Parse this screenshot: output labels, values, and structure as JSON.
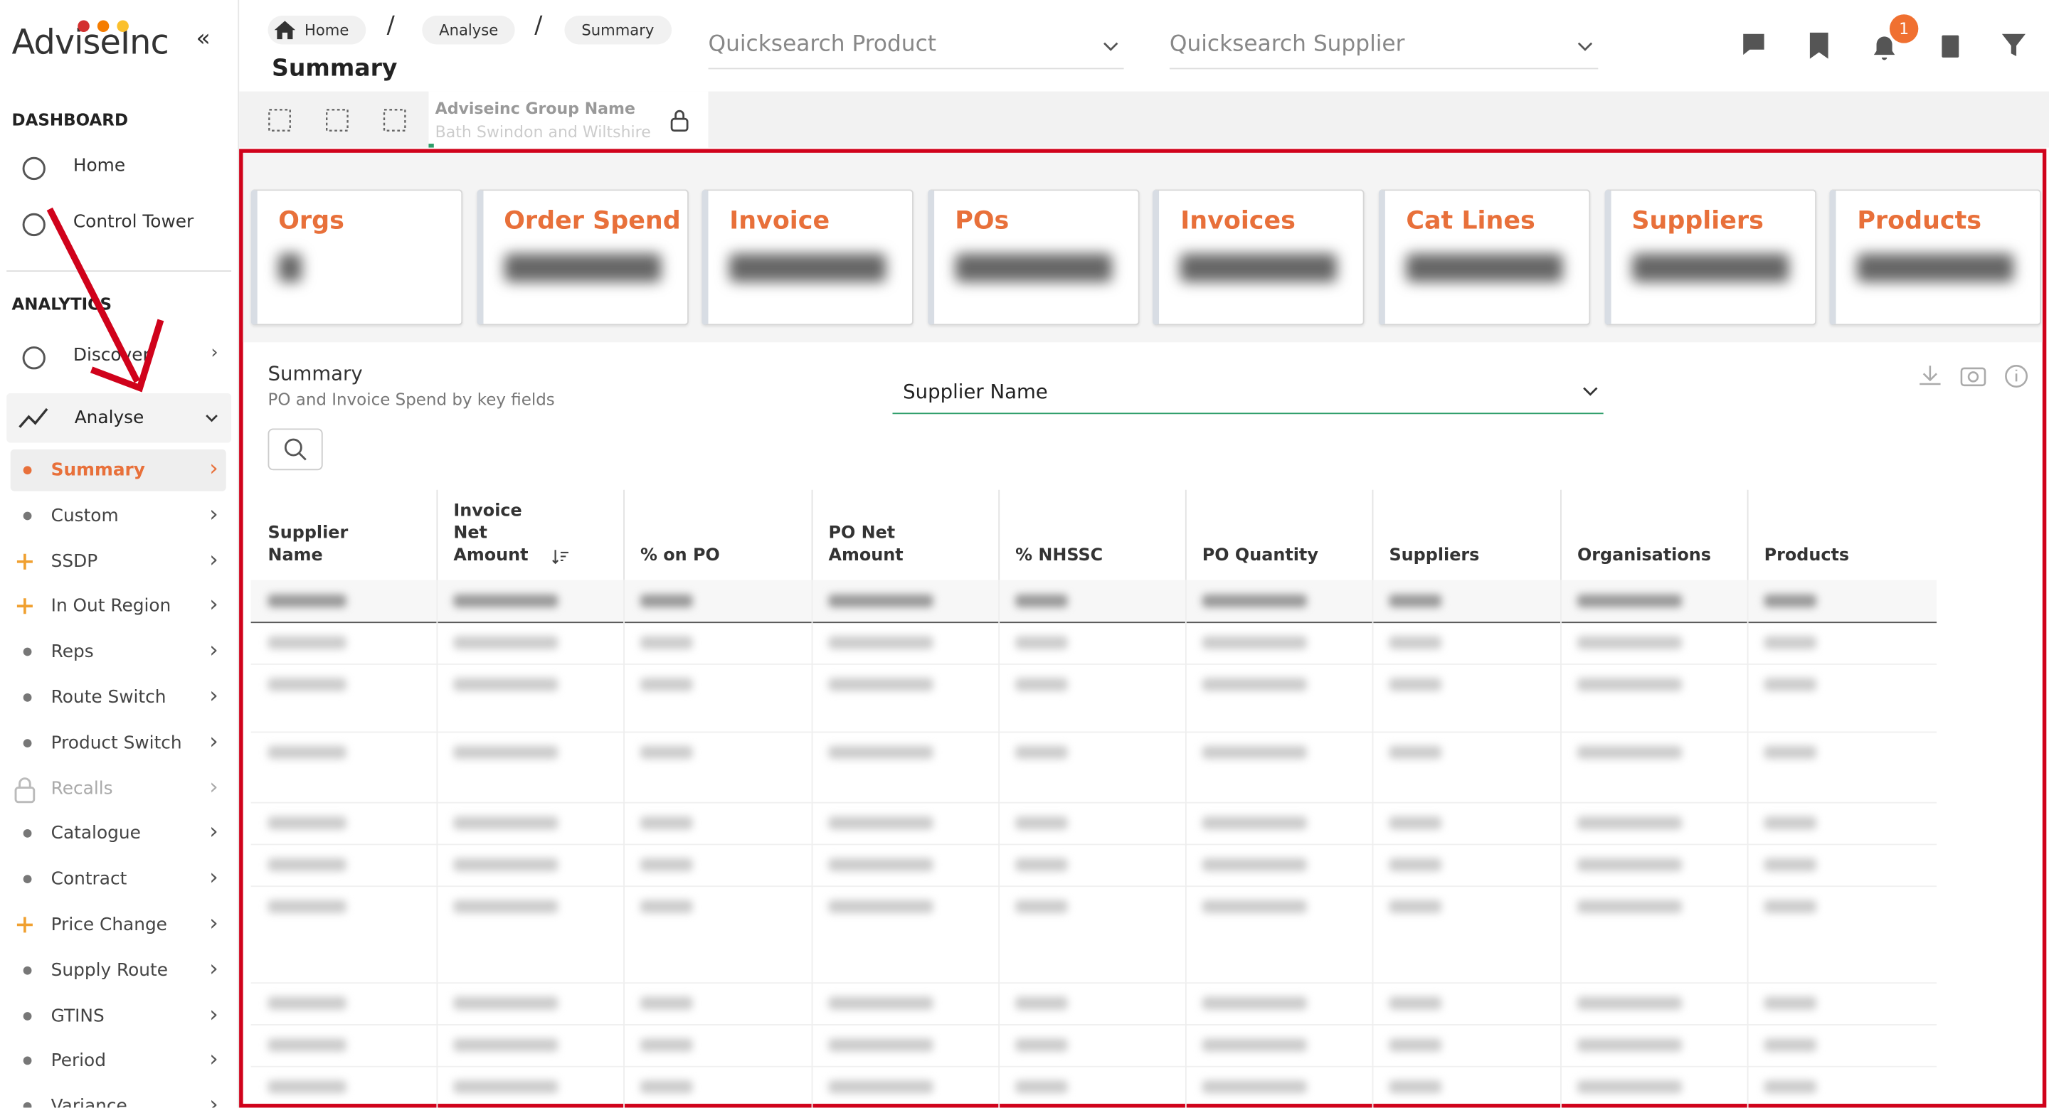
{
  "sidebar": {
    "logo": "AdviseInc",
    "collapse": "«",
    "sections": [
      {
        "title": "DASHBOARD",
        "items": [
          "Home",
          "Control Tower"
        ]
      },
      {
        "title": "ANALYTICS",
        "items": [
          "Discover"
        ]
      }
    ],
    "analyse": "Analyse",
    "items": [
      {
        "label": "Summary",
        "marker": "dot",
        "active": true
      },
      {
        "label": "Custom",
        "marker": "dot"
      },
      {
        "label": "SSDP",
        "marker": "plus"
      },
      {
        "label": "In Out Region",
        "marker": "plus"
      },
      {
        "label": "Reps",
        "marker": "dot"
      },
      {
        "label": "Route Switch",
        "marker": "dot"
      },
      {
        "label": "Product Switch",
        "marker": "dot"
      },
      {
        "label": "Recalls",
        "marker": "lock"
      },
      {
        "label": "Catalogue",
        "marker": "dot"
      },
      {
        "label": "Contract",
        "marker": "dot"
      },
      {
        "label": "Price Change",
        "marker": "plus"
      },
      {
        "label": "Supply Route",
        "marker": "dot"
      },
      {
        "label": "GTINS",
        "marker": "dot"
      },
      {
        "label": "Period",
        "marker": "dot"
      },
      {
        "label": "Variance",
        "marker": "dot"
      }
    ]
  },
  "header": {
    "breadcrumbs": [
      "Home",
      "Analyse",
      "Summary"
    ],
    "separator": "/",
    "title": "Summary",
    "quicksearch": [
      "Quicksearch Product",
      "Quicksearch Supplier"
    ],
    "badge": "1",
    "group_label": "Adviseinc Group Name",
    "group_value": "Bath Swindon and Wiltshire"
  },
  "kpis": [
    "Orgs",
    "Order Spend",
    "Invoice",
    "POs",
    "Invoices",
    "Cat Lines",
    "Suppliers",
    "Products"
  ],
  "summary": {
    "title": "Summary",
    "subtitle": "PO and Invoice Spend by key fields",
    "dropdown": "Supplier Name"
  },
  "table": {
    "columns": [
      "Supplier Name",
      "Invoice Net Amount",
      "% on PO",
      "PO Net Amount",
      "% NHSSC",
      "PO Quantity",
      "Suppliers",
      "Organisations",
      "Products"
    ]
  }
}
